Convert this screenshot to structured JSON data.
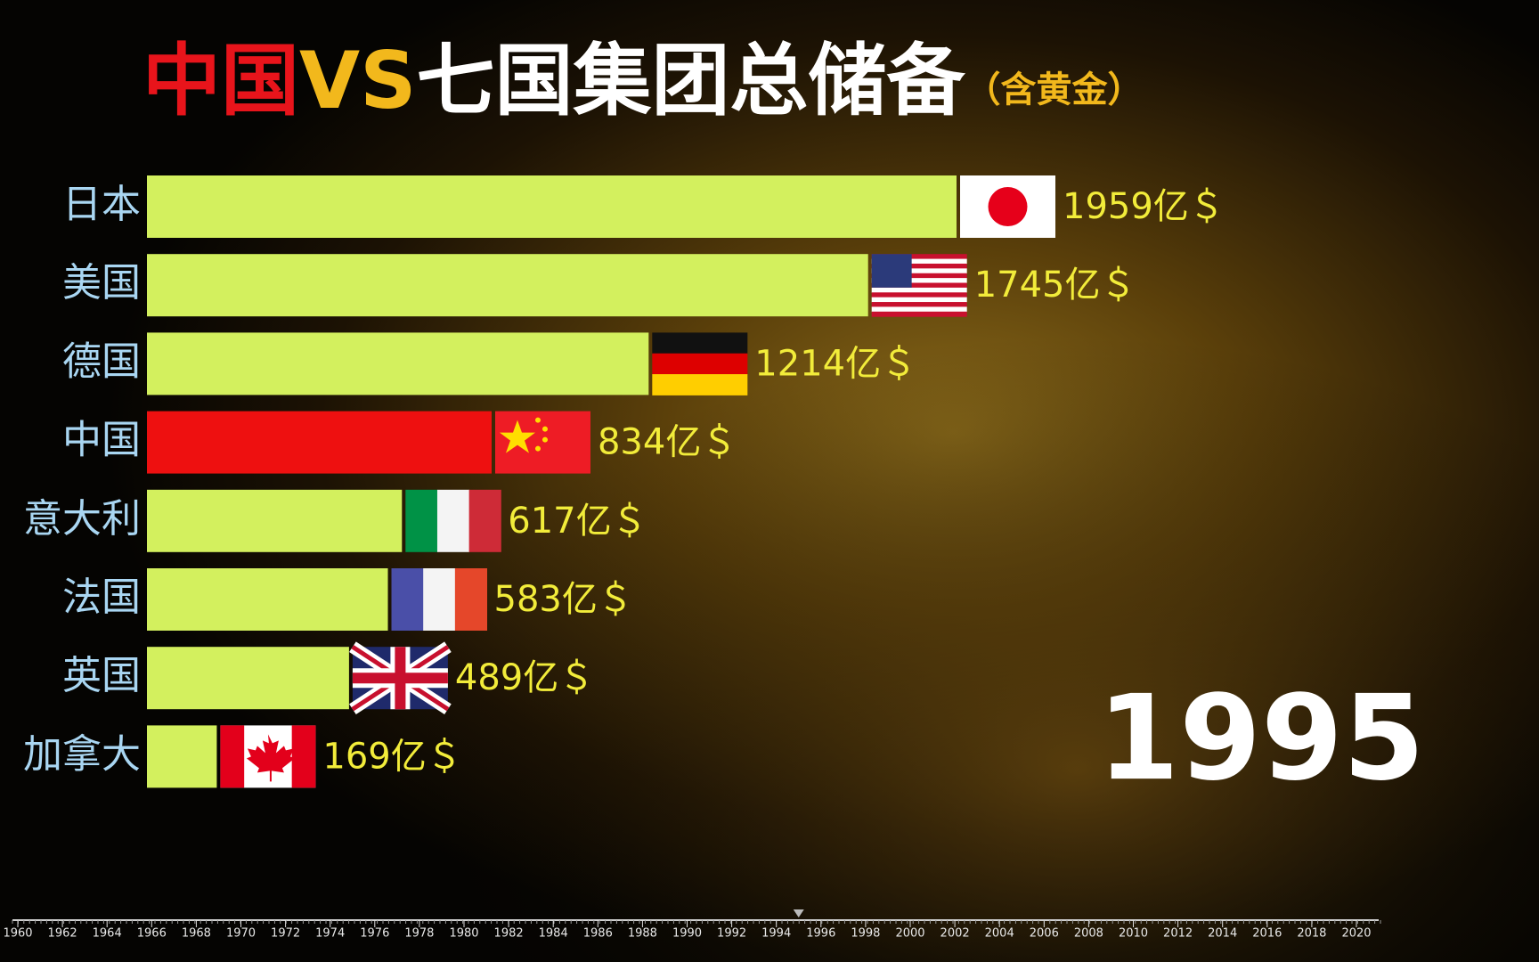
{
  "chart_data": {
    "type": "bar",
    "orientation": "horizontal",
    "title_parts": [
      "中国",
      "VS",
      "七国集团总储备",
      "（含黄金）"
    ],
    "title_colors": [
      "#e8141b",
      "#f2b81c",
      "#ffffff",
      "#f2b81c"
    ],
    "categories": [
      "日本",
      "美国",
      "德国",
      "中国",
      "意大利",
      "法国",
      "英国",
      "加拿大"
    ],
    "values": [
      1959,
      1745,
      1214,
      834,
      617,
      583,
      489,
      169
    ],
    "value_labels": [
      "1959亿＄",
      "1745亿＄",
      "1214亿＄",
      "834亿＄",
      "617亿＄",
      "583亿＄",
      "489亿＄",
      "169亿＄"
    ],
    "colors": [
      "#d3f05e",
      "#d3f05e",
      "#d3f05e",
      "#ee1010",
      "#d3f05e",
      "#d3f05e",
      "#d3f05e",
      "#d3f05e"
    ],
    "year": 1995,
    "timeline": {
      "xlim": [
        1960,
        2020
      ],
      "xticks": [
        1960,
        1962,
        1964,
        1966,
        1968,
        1970,
        1972,
        1974,
        1976,
        1978,
        1980,
        1982,
        1984,
        1986,
        1988,
        1990,
        1992,
        1994,
        1996,
        1998,
        2000,
        2002,
        2004,
        2006,
        2008,
        2010,
        2012,
        2014,
        2016,
        2018,
        2020
      ]
    }
  }
}
